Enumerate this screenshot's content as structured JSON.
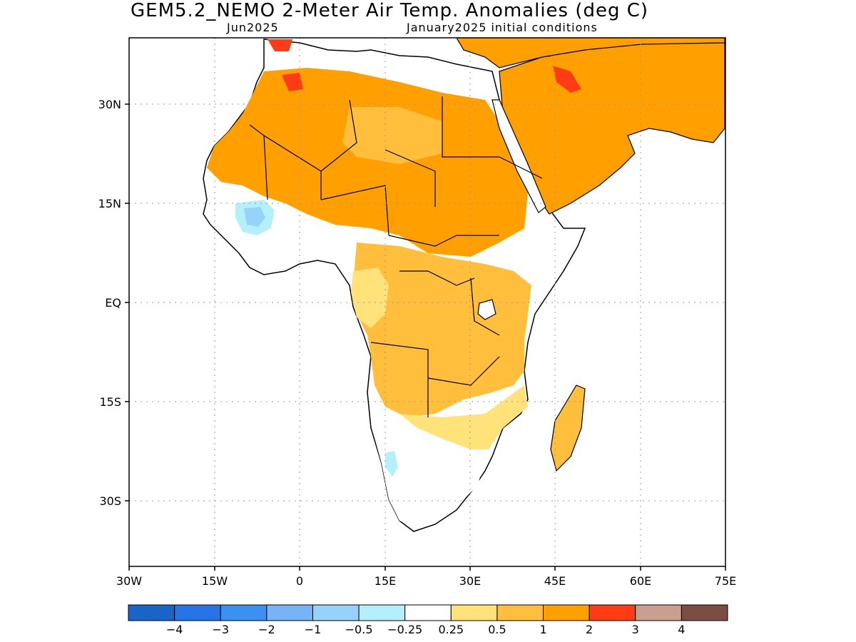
{
  "header": {
    "title": "GEM5.2_NEMO 2-Meter Air Temp. Anomalies (deg C)",
    "valid_month": "Jun2025",
    "init_conditions": "January2025 initial conditions"
  },
  "axes": {
    "lat_labels": [
      "30N",
      "15N",
      "EQ",
      "15S",
      "30S"
    ],
    "lon_labels": [
      "30W",
      "15W",
      "0",
      "15E",
      "30E",
      "45E",
      "60E",
      "75E"
    ],
    "lon_range": [
      -30,
      75
    ],
    "lat_range": [
      -40,
      37
    ],
    "grid": "dotted"
  },
  "colorbar": {
    "colors": [
      "#1a64c8",
      "#2673e6",
      "#3c91f0",
      "#78b4f5",
      "#96d2fa",
      "#b4f0fa",
      "#ffffff",
      "#ffe27a",
      "#ffbe3c",
      "#ffa000",
      "#ff3c14",
      "#c8a090",
      "#7a4e42"
    ],
    "labels": [
      "-4",
      "-3",
      "-2",
      "-1",
      "-0.5",
      "-0.25",
      "0.25",
      "0.5",
      "1",
      "2",
      "3",
      "4"
    ]
  },
  "legend_colors": {
    "anom_0_25": "#ffe27a",
    "anom_0_5": "#ffbe3c",
    "anom_1": "#ffa000",
    "anom_2": "#ff3c14",
    "cold_1": "#96d2fa",
    "cold_2": "#b4f0fa"
  }
}
